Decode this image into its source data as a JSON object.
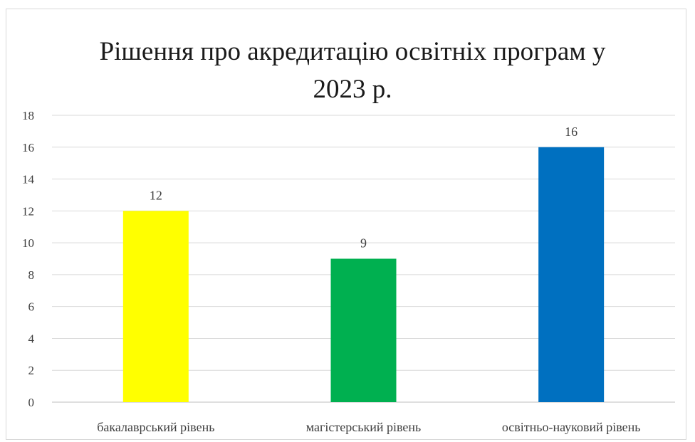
{
  "chart_data": {
    "type": "bar",
    "title": "Рішення про акредитацію освітніх програм у\n2023 р.",
    "categories": [
      "бакалаврський рівень",
      "магістерський рівень",
      "освітньо-науковий рівень"
    ],
    "values": [
      12,
      9,
      16
    ],
    "bar_colors": [
      "#ffff00",
      "#00b050",
      "#0070c0"
    ],
    "ylim": [
      0,
      18
    ],
    "yticks": [
      0,
      2,
      4,
      6,
      8,
      10,
      12,
      14,
      16,
      18
    ],
    "grid": true,
    "data_labels": true,
    "legend": "none",
    "xlabel": "",
    "ylabel": ""
  }
}
